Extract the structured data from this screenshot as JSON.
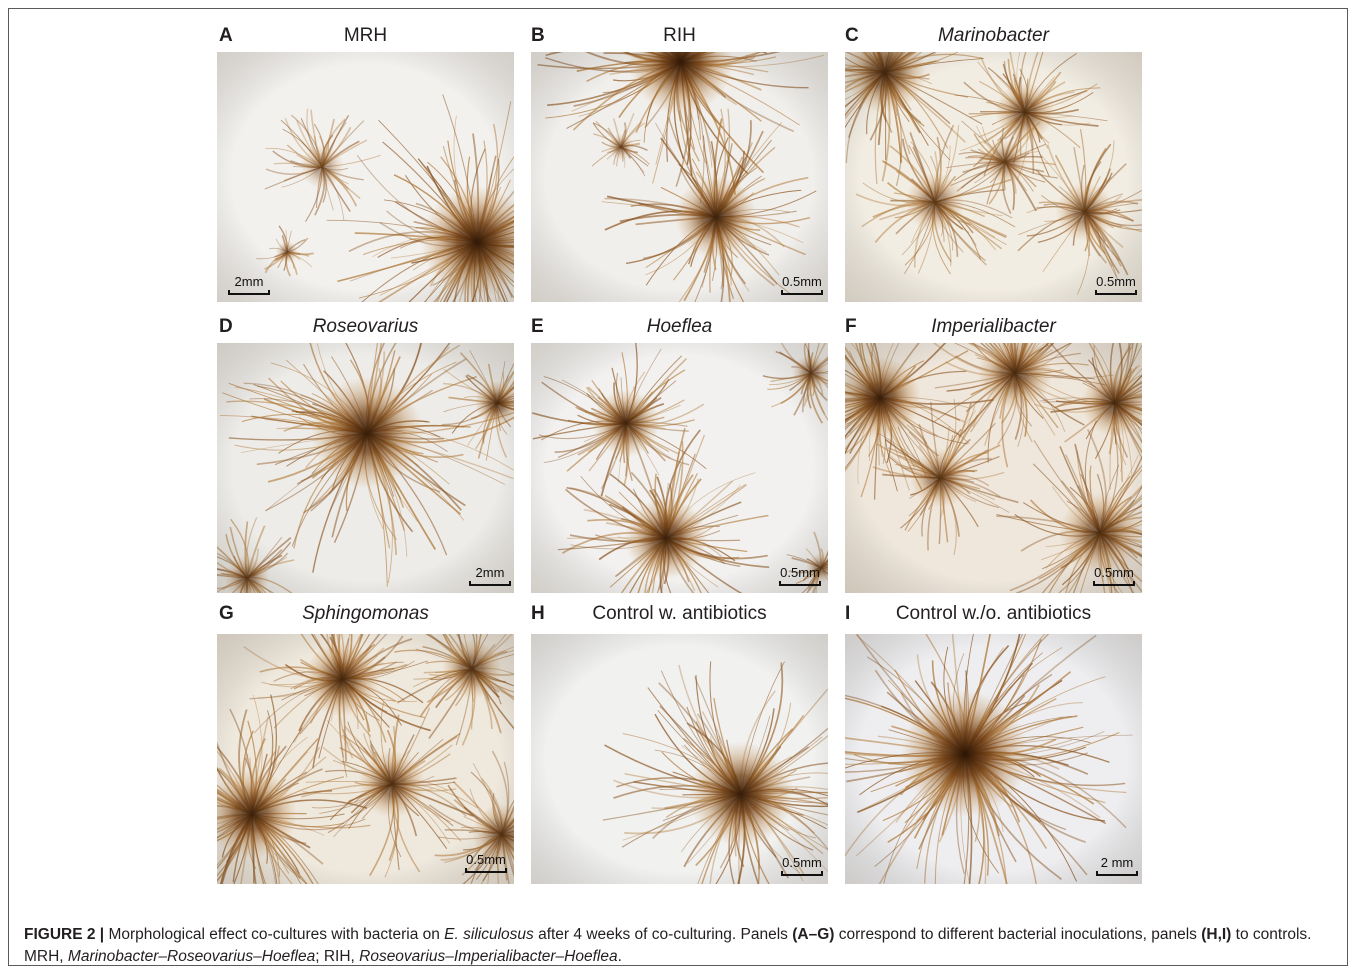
{
  "panels": [
    {
      "letter": "A",
      "title": "MRH",
      "italic": false,
      "scale": "2mm",
      "bg": "#f3f1ee",
      "hubs": [
        [
          105,
          115,
          30,
          0.45
        ],
        [
          260,
          190,
          75,
          0.95
        ],
        [
          70,
          200,
          15,
          0.5
        ]
      ]
    },
    {
      "letter": "B",
      "title": "RIH",
      "italic": false,
      "scale": "0.5mm",
      "bg": "#f1efec",
      "hubs": [
        [
          150,
          10,
          70,
          0.95
        ],
        [
          185,
          165,
          55,
          0.85
        ],
        [
          90,
          95,
          18,
          0.5
        ]
      ]
    },
    {
      "letter": "C",
      "title": "Marinobacter",
      "italic": true,
      "scale": "0.5mm",
      "bg": "#f2ede3",
      "hubs": [
        [
          40,
          20,
          55,
          0.8
        ],
        [
          180,
          60,
          40,
          0.7
        ],
        [
          90,
          150,
          40,
          0.6
        ],
        [
          240,
          160,
          40,
          0.6
        ],
        [
          160,
          110,
          30,
          0.55
        ]
      ]
    },
    {
      "letter": "D",
      "title": "Roseovarius",
      "italic": true,
      "scale": "2mm",
      "bg": "#eeece8",
      "hubs": [
        [
          150,
          90,
          75,
          0.9
        ],
        [
          280,
          60,
          30,
          0.75
        ],
        [
          30,
          235,
          30,
          0.6
        ]
      ]
    },
    {
      "letter": "E",
      "title": "Hoeflea",
      "italic": true,
      "scale": "0.5mm",
      "bg": "#f2f1ef",
      "hubs": [
        [
          95,
          80,
          45,
          0.8
        ],
        [
          135,
          195,
          55,
          0.85
        ],
        [
          280,
          30,
          25,
          0.6
        ],
        [
          290,
          225,
          20,
          0.6
        ]
      ]
    },
    {
      "letter": "F",
      "title": "Imperialibacter",
      "italic": true,
      "scale": "0.5mm",
      "bg": "#efe7dc",
      "hubs": [
        [
          35,
          55,
          55,
          0.9
        ],
        [
          170,
          30,
          50,
          0.75
        ],
        [
          95,
          135,
          40,
          0.65
        ],
        [
          270,
          60,
          45,
          0.75
        ],
        [
          255,
          190,
          55,
          0.7
        ]
      ]
    },
    {
      "letter": "G",
      "title": "Sphingomonas",
      "italic": true,
      "scale": "0.5mm",
      "bg": "#efe8dd",
      "hubs": [
        [
          125,
          45,
          50,
          0.8
        ],
        [
          255,
          35,
          40,
          0.7
        ],
        [
          35,
          180,
          60,
          0.85
        ],
        [
          175,
          150,
          45,
          0.7
        ],
        [
          285,
          200,
          40,
          0.6
        ]
      ]
    },
    {
      "letter": "H",
      "title": "Control w. antibiotics",
      "italic": false,
      "scale": "0.5mm",
      "bg": "#f1f1f0",
      "hubs": [
        [
          210,
          160,
          70,
          0.9
        ]
      ]
    },
    {
      "letter": "I",
      "title": "Control w./o. antibiotics",
      "italic": false,
      "scale": "2 mm",
      "bg": "#eeeef0",
      "hubs": [
        [
          120,
          120,
          85,
          1.0
        ]
      ]
    }
  ],
  "caption": {
    "label": "FIGURE 2 |",
    "t1": " Morphological effect co-cultures with bacteria on ",
    "species": "E. siliculosus",
    "t2": " after 4 weeks of co-culturing. Panels ",
    "range": "(A–G)",
    "t3": " correspond to different bacterial inoculations, panels ",
    "controls": "(H,I)",
    "t4": " to controls. MRH, ",
    "mrh": "Marinobacter–Roseovarius–Hoeflea",
    "t5": "; RIH, ",
    "rih": "Roseovarius–Imperialibacter–Hoeflea",
    "t6": "."
  }
}
